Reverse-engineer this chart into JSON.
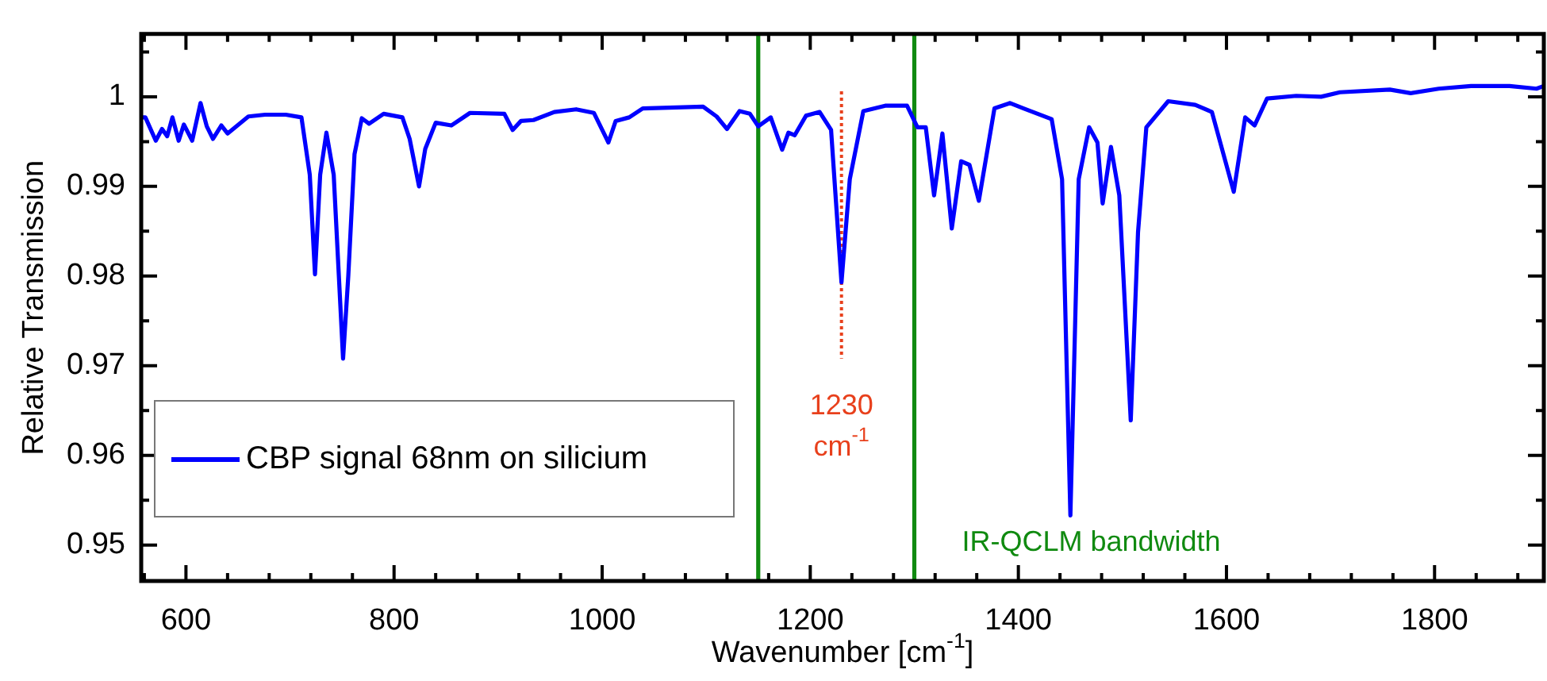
{
  "chart_data": {
    "type": "line",
    "xlabel": "Wavenumber [cm$^{-1}$]",
    "ylabel": "Relative Transmission",
    "xlim": [
      557,
      1905
    ],
    "xticks": [
      {
        "value": 560,
        "label": null
      },
      600,
      {
        "value": 640,
        "label": null
      },
      {
        "value": 680,
        "label": null
      },
      {
        "value": 720,
        "label": null
      },
      {
        "value": 760,
        "label": null
      },
      800,
      {
        "value": 840,
        "label": null
      },
      {
        "value": 880,
        "label": null
      },
      {
        "value": 920,
        "label": null
      },
      {
        "value": 960,
        "label": null
      },
      1000,
      {
        "value": 1040,
        "label": null
      },
      {
        "value": 1080,
        "label": null
      },
      {
        "value": 1120,
        "label": null
      },
      {
        "value": 1160,
        "label": null
      },
      1200,
      {
        "value": 1240,
        "label": null
      },
      {
        "value": 1280,
        "label": null
      },
      {
        "value": 1320,
        "label": null
      },
      {
        "value": 1360,
        "label": null
      },
      1400,
      {
        "value": 1440,
        "label": null
      },
      {
        "value": 1480,
        "label": null
      },
      {
        "value": 1520,
        "label": null
      },
      {
        "value": 1560,
        "label": null
      },
      1600,
      {
        "value": 1640,
        "label": null
      },
      {
        "value": 1680,
        "label": null
      },
      {
        "value": 1720,
        "label": null
      },
      {
        "value": 1760,
        "label": null
      },
      1800,
      {
        "value": 1840,
        "label": null
      },
      {
        "value": 1880,
        "label": null
      }
    ],
    "ylim": [
      0.946,
      1.007
    ],
    "yticks": [
      0.95,
      {
        "value": 0.955,
        "label": null
      },
      0.96,
      {
        "value": 0.965,
        "label": null
      },
      0.97,
      {
        "value": 0.975,
        "label": null
      },
      0.98,
      {
        "value": 0.985,
        "label": null
      },
      0.99,
      {
        "value": 0.995,
        "label": null
      },
      1,
      {
        "value": 1.005,
        "label": null
      }
    ],
    "grid": false,
    "legend": "left",
    "marker": "none",
    "line_style": "solid",
    "series": [
      {
        "name": "CBP signal 68nm on silicium",
        "color": "#0000ff",
        "x": [
          557,
          561,
          571,
          577,
          582,
          587,
          593,
          598,
          606,
          614,
          620,
          626,
          634,
          640,
          660,
          676,
          696,
          711,
          719,
          724,
          729,
          735,
          742,
          751,
          756,
          762,
          769,
          776,
          790,
          808,
          815,
          824,
          830,
          840,
          855,
          873,
          906,
          914,
          922,
          934,
          954,
          975,
          992,
          1006,
          1013,
          1026,
          1039,
          1097,
          1110,
          1120,
          1132,
          1142,
          1150,
          1162,
          1173,
          1179,
          1185,
          1196,
          1209,
          1220,
          1230,
          1238,
          1251,
          1272,
          1293,
          1303,
          1311,
          1319,
          1327,
          1336,
          1345,
          1353,
          1362,
          1377,
          1392,
          1405,
          1432,
          1442,
          1450,
          1458,
          1468,
          1476,
          1481,
          1489,
          1497,
          1508,
          1515,
          1523,
          1544,
          1570,
          1586,
          1607,
          1618,
          1627,
          1639,
          1667,
          1691,
          1709,
          1757,
          1777,
          1804,
          1835,
          1872,
          1898,
          1905
        ],
        "values": [
          0.9977,
          0.9977,
          0.9951,
          0.9964,
          0.9956,
          0.9977,
          0.9951,
          0.9969,
          0.9951,
          0.9993,
          0.9967,
          0.9953,
          0.9968,
          0.9959,
          0.9978,
          0.998,
          0.998,
          0.9977,
          0.9913,
          0.9802,
          0.9913,
          0.996,
          0.9913,
          0.9708,
          0.98,
          0.9936,
          0.9976,
          0.997,
          0.9981,
          0.9977,
          0.9953,
          0.99,
          0.9942,
          0.9971,
          0.9968,
          0.9982,
          0.9981,
          0.9963,
          0.9973,
          0.9974,
          0.9983,
          0.9986,
          0.9982,
          0.9949,
          0.9973,
          0.9977,
          0.9987,
          0.9989,
          0.9978,
          0.9964,
          0.9984,
          0.9981,
          0.9967,
          0.9977,
          0.9941,
          0.996,
          0.9957,
          0.9979,
          0.9983,
          0.9963,
          0.9793,
          0.9908,
          0.9984,
          0.999,
          0.999,
          0.9966,
          0.9966,
          0.989,
          0.9959,
          0.9853,
          0.9928,
          0.9924,
          0.9884,
          0.9987,
          0.9993,
          0.9987,
          0.9975,
          0.9908,
          0.9533,
          0.9908,
          0.9966,
          0.9949,
          0.9881,
          0.9944,
          0.989,
          0.9639,
          0.9849,
          0.9966,
          0.9995,
          0.9991,
          0.9983,
          0.9894,
          0.9977,
          0.9968,
          0.9998,
          1.0001,
          1.0,
          1.0005,
          1.0008,
          1.0004,
          1.0009,
          1.0012,
          1.0012,
          1.0009,
          1.0012
        ]
      },
      {
        "type": "line",
        "color": "#e8401c",
        "line_style": "dotted",
        "x": [
          1230,
          1230
        ],
        "values": [
          1.0006,
          0.9708
        ]
      }
    ],
    "ref_lines": [
      {
        "axis": "x",
        "value": 1150,
        "color": "#108a10",
        "line_style": "solid"
      },
      {
        "axis": "x",
        "value": 1300,
        "color": "#108a10",
        "line_style": "solid"
      }
    ],
    "annotations": [
      {
        "text": "1230\ncm$^{-1}$",
        "x": 1230,
        "y": 0.9708
      },
      "IR-QCLM bandwidth"
    ]
  }
}
